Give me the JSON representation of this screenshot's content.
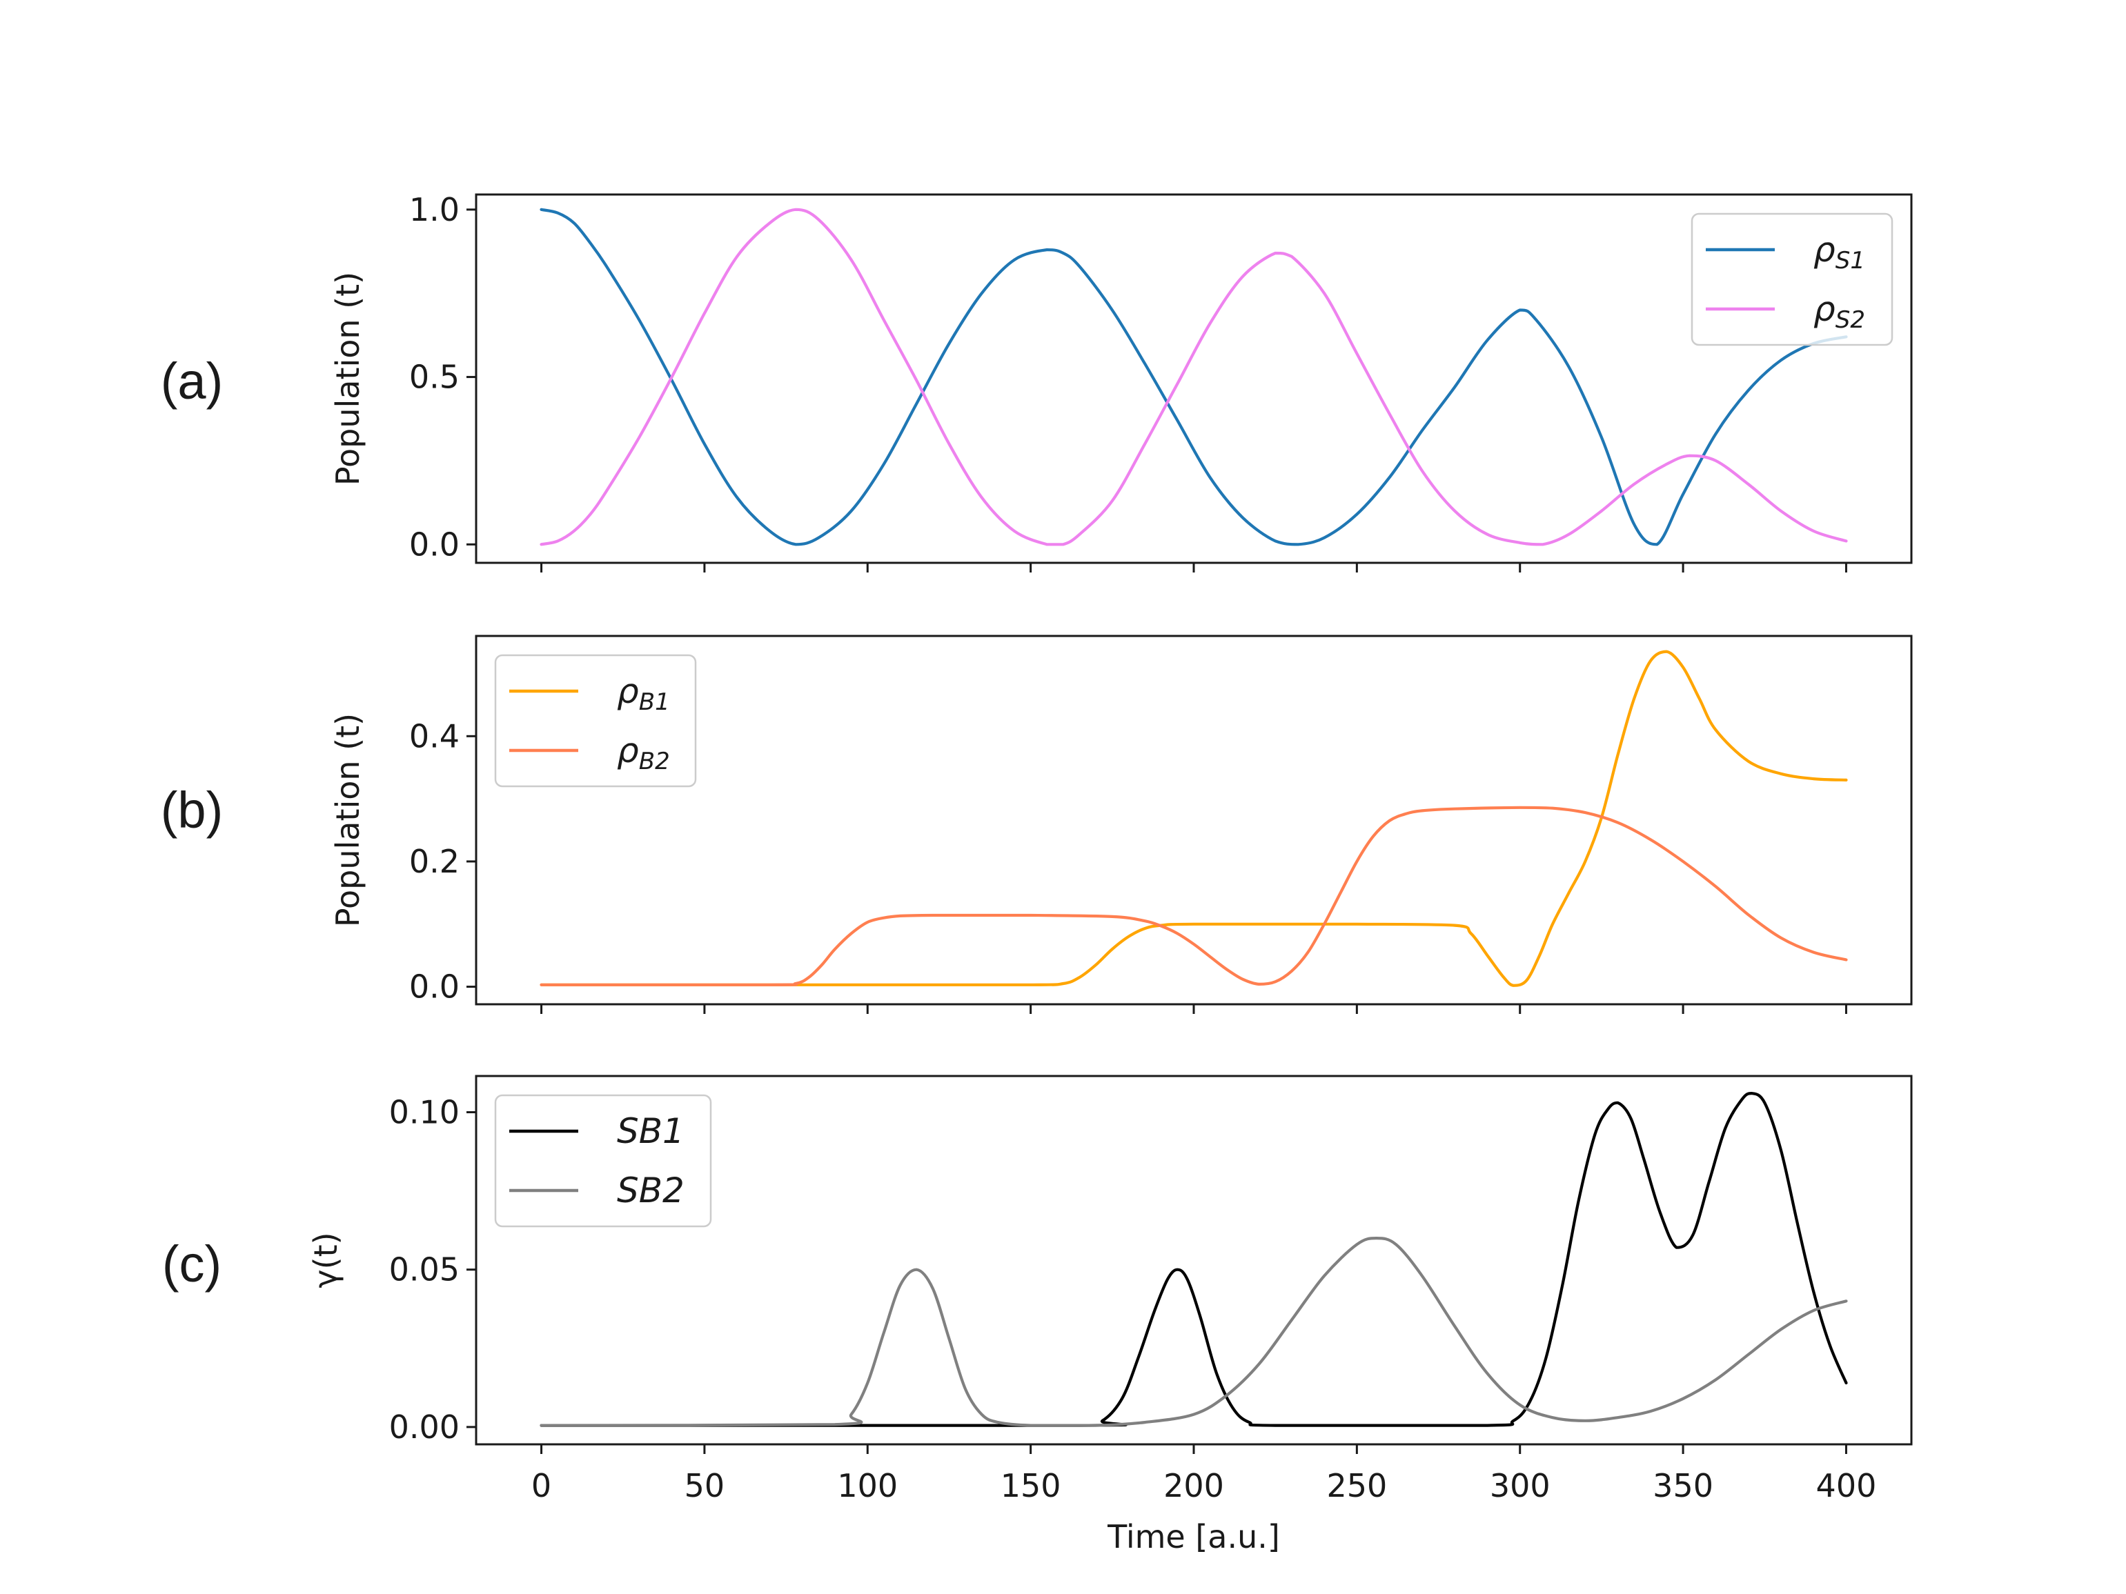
{
  "chart_data": [
    {
      "panel": "(a)",
      "type": "line",
      "ylabel": "Population (t)",
      "xlabel": "",
      "xlim": [
        -20,
        420
      ],
      "ylim": [
        -0.055,
        1.045
      ],
      "yticks": [
        0.0,
        0.5,
        1.0
      ],
      "ytick_labels": [
        "0.0",
        "0.5",
        "1.0"
      ],
      "xticks": [
        0,
        50,
        100,
        150,
        200,
        250,
        300,
        350,
        400
      ],
      "show_xtick_labels": false,
      "legend": {
        "position": "upper right"
      },
      "series": [
        {
          "name": "ρS1",
          "legend_main": "ρ",
          "legend_sub": "S1",
          "color": "#1f77b4",
          "x": [
            0,
            5,
            10,
            15,
            20,
            30,
            40,
            50,
            60,
            70,
            78,
            85,
            95,
            105,
            115,
            125,
            135,
            145,
            155,
            160,
            165,
            175,
            185,
            195,
            205,
            215,
            225,
            232,
            240,
            250,
            260,
            270,
            280,
            290,
            300,
            305,
            315,
            325,
            335,
            342,
            350,
            360,
            370,
            380,
            390,
            400
          ],
          "y": [
            1.0,
            0.99,
            0.96,
            0.9,
            0.83,
            0.67,
            0.49,
            0.3,
            0.14,
            0.04,
            0.0,
            0.02,
            0.1,
            0.24,
            0.42,
            0.6,
            0.75,
            0.85,
            0.88,
            0.87,
            0.83,
            0.7,
            0.54,
            0.37,
            0.2,
            0.08,
            0.01,
            0.0,
            0.02,
            0.09,
            0.2,
            0.34,
            0.47,
            0.61,
            0.7,
            0.67,
            0.53,
            0.32,
            0.06,
            0.0,
            0.15,
            0.33,
            0.46,
            0.55,
            0.6,
            0.62
          ]
        },
        {
          "name": "ρS2",
          "legend_main": "ρ",
          "legend_sub": "S2",
          "color": "#ee82ee",
          "x": [
            0,
            5,
            10,
            15,
            20,
            30,
            40,
            50,
            60,
            70,
            78,
            85,
            95,
            105,
            115,
            125,
            135,
            145,
            155,
            160,
            165,
            175,
            185,
            195,
            205,
            215,
            225,
            230,
            240,
            250,
            260,
            270,
            280,
            290,
            300,
            307,
            315,
            325,
            335,
            345,
            352,
            360,
            370,
            380,
            390,
            400
          ],
          "y": [
            0.0,
            0.01,
            0.04,
            0.09,
            0.16,
            0.32,
            0.5,
            0.69,
            0.86,
            0.96,
            1.0,
            0.97,
            0.85,
            0.67,
            0.49,
            0.3,
            0.14,
            0.04,
            0.0,
            0.0,
            0.03,
            0.13,
            0.3,
            0.48,
            0.66,
            0.8,
            0.87,
            0.86,
            0.75,
            0.57,
            0.39,
            0.22,
            0.1,
            0.03,
            0.005,
            0.0,
            0.03,
            0.1,
            0.18,
            0.24,
            0.265,
            0.25,
            0.18,
            0.1,
            0.04,
            0.01
          ]
        }
      ]
    },
    {
      "panel": "(b)",
      "type": "line",
      "ylabel": "Population (t)",
      "xlabel": "",
      "xlim": [
        -20,
        420
      ],
      "ylim": [
        -0.028,
        0.56
      ],
      "yticks": [
        0.0,
        0.2,
        0.4
      ],
      "ytick_labels": [
        "0.0",
        "0.2",
        "0.4"
      ],
      "xticks": [
        0,
        50,
        100,
        150,
        200,
        250,
        300,
        350,
        400
      ],
      "show_xtick_labels": false,
      "legend": {
        "position": "upper left"
      },
      "series": [
        {
          "name": "ρB1",
          "legend_main": "ρ",
          "legend_sub": "B1",
          "color": "#ffa500",
          "x": [
            0,
            100,
            150,
            160,
            165,
            170,
            175,
            180,
            185,
            190,
            200,
            250,
            280,
            285,
            290,
            295,
            298,
            302,
            306,
            310,
            315,
            320,
            325,
            330,
            335,
            340,
            345,
            350,
            355,
            360,
            370,
            380,
            390,
            400
          ],
          "y": [
            0.003,
            0.003,
            0.003,
            0.005,
            0.015,
            0.035,
            0.06,
            0.08,
            0.093,
            0.098,
            0.1,
            0.1,
            0.098,
            0.085,
            0.05,
            0.015,
            0.002,
            0.01,
            0.05,
            0.1,
            0.15,
            0.2,
            0.27,
            0.37,
            0.46,
            0.52,
            0.535,
            0.51,
            0.46,
            0.41,
            0.36,
            0.34,
            0.332,
            0.33
          ]
        },
        {
          "name": "ρB2",
          "legend_main": "ρ",
          "legend_sub": "B2",
          "color": "#ff7f50",
          "x": [
            0,
            70,
            78,
            82,
            86,
            90,
            95,
            100,
            105,
            110,
            120,
            150,
            175,
            185,
            190,
            195,
            200,
            205,
            210,
            215,
            220,
            225,
            230,
            235,
            240,
            245,
            250,
            255,
            260,
            265,
            270,
            280,
            300,
            310,
            320,
            330,
            340,
            350,
            360,
            370,
            380,
            390,
            400
          ],
          "y": [
            0.003,
            0.003,
            0.005,
            0.015,
            0.035,
            0.06,
            0.085,
            0.103,
            0.11,
            0.113,
            0.114,
            0.114,
            0.112,
            0.105,
            0.097,
            0.085,
            0.068,
            0.048,
            0.028,
            0.012,
            0.004,
            0.008,
            0.025,
            0.055,
            0.1,
            0.15,
            0.2,
            0.24,
            0.265,
            0.276,
            0.281,
            0.284,
            0.286,
            0.285,
            0.278,
            0.262,
            0.235,
            0.2,
            0.16,
            0.115,
            0.078,
            0.055,
            0.043
          ]
        }
      ]
    },
    {
      "panel": "(c)",
      "type": "line",
      "ylabel": "γ(t)",
      "xlabel": "Time [a.u.]",
      "xlim": [
        -20,
        420
      ],
      "ylim": [
        -0.0055,
        0.1115
      ],
      "yticks": [
        0.0,
        0.05,
        0.1
      ],
      "ytick_labels": [
        "0.00",
        "0.05",
        "0.10"
      ],
      "xticks": [
        0,
        50,
        100,
        150,
        200,
        250,
        300,
        350,
        400
      ],
      "xtick_labels": [
        "0",
        "50",
        "100",
        "150",
        "200",
        "250",
        "300",
        "350",
        "400"
      ],
      "show_xtick_labels": true,
      "legend": {
        "position": "upper left"
      },
      "series": [
        {
          "name": "SB1",
          "legend_main": "SB1",
          "color": "#000000",
          "x": [
            0,
            165,
            172,
            178,
            183,
            188,
            192,
            195,
            198,
            202,
            207,
            212,
            217,
            225,
            290,
            298,
            303,
            308,
            313,
            318,
            323,
            327,
            330,
            334,
            338,
            343,
            348,
            353,
            358,
            363,
            368,
            371,
            375,
            380,
            385,
            390,
            395,
            400
          ],
          "y": [
            0.0005,
            0.0005,
            0.002,
            0.009,
            0.022,
            0.037,
            0.047,
            0.05,
            0.047,
            0.035,
            0.017,
            0.006,
            0.0015,
            0.0005,
            0.0005,
            0.002,
            0.008,
            0.022,
            0.045,
            0.072,
            0.093,
            0.101,
            0.103,
            0.098,
            0.085,
            0.068,
            0.057,
            0.061,
            0.078,
            0.095,
            0.104,
            0.106,
            0.103,
            0.088,
            0.065,
            0.043,
            0.026,
            0.014
          ]
        },
        {
          "name": "SB2",
          "legend_main": "SB2",
          "color": "#808080",
          "x": [
            0,
            90,
            95,
            100,
            105,
            110,
            115,
            120,
            125,
            130,
            135,
            140,
            150,
            170,
            185,
            200,
            210,
            220,
            230,
            240,
            250,
            256,
            262,
            270,
            280,
            290,
            300,
            310,
            320,
            330,
            340,
            350,
            360,
            370,
            380,
            390,
            400
          ],
          "y": [
            0.0005,
            0.0008,
            0.004,
            0.014,
            0.03,
            0.045,
            0.05,
            0.044,
            0.028,
            0.012,
            0.004,
            0.0015,
            0.0005,
            0.0005,
            0.0015,
            0.004,
            0.01,
            0.02,
            0.034,
            0.048,
            0.058,
            0.06,
            0.058,
            0.048,
            0.032,
            0.017,
            0.007,
            0.003,
            0.002,
            0.003,
            0.005,
            0.009,
            0.015,
            0.023,
            0.031,
            0.037,
            0.04
          ]
        }
      ]
    }
  ]
}
